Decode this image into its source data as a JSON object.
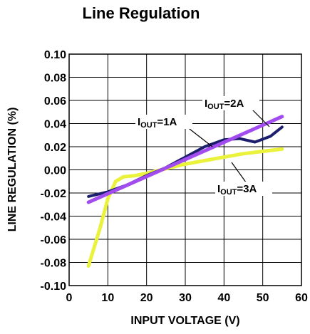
{
  "chart_data": {
    "type": "line",
    "title": "Line Regulation",
    "xlabel": "INPUT VOLTAGE (V)",
    "ylabel": "LINE REGULATION (%)",
    "xlim": [
      0,
      60
    ],
    "ylim": [
      -0.1,
      0.1
    ],
    "xticks": [
      0,
      10,
      20,
      30,
      40,
      50,
      60
    ],
    "xtick_labels": [
      "0",
      "10",
      "20",
      "30",
      "40",
      "50",
      "60"
    ],
    "yticks": [
      0.1,
      0.08,
      0.06,
      0.04,
      0.02,
      0.0,
      -0.02,
      -0.04,
      -0.06,
      -0.08,
      -0.1
    ],
    "ytick_labels": [
      "0.10",
      "0.08",
      "0.06",
      "0.04",
      "0.02",
      "0.00",
      "-0.02",
      "-0.04",
      "-0.06",
      "-0.08",
      "-0.10"
    ],
    "grid": true,
    "series": [
      {
        "name_parts": [
          "I",
          "OUT",
          "=1A"
        ],
        "color": "#1b1f6e",
        "points": [
          [
            5,
            -0.023
          ],
          [
            10,
            -0.019
          ],
          [
            15,
            -0.013
          ],
          [
            20,
            -0.005
          ],
          [
            25,
            0.002
          ],
          [
            30,
            0.011
          ],
          [
            35,
            0.02
          ],
          [
            40,
            0.026
          ],
          [
            44,
            0.027
          ],
          [
            48,
            0.024
          ],
          [
            52,
            0.029
          ],
          [
            55,
            0.037
          ]
        ]
      },
      {
        "name_parts": [
          "I",
          "OUT",
          "=2A"
        ],
        "color": "#a24cf0",
        "points": [
          [
            5,
            -0.028
          ],
          [
            55,
            0.046
          ]
        ]
      },
      {
        "name_parts": [
          "I",
          "OUT",
          "=3A"
        ],
        "color": "#eaf23c",
        "points": [
          [
            5,
            -0.083
          ],
          [
            8,
            -0.05
          ],
          [
            10,
            -0.025
          ],
          [
            12,
            -0.01
          ],
          [
            14,
            -0.006
          ],
          [
            17,
            -0.005
          ],
          [
            20,
            -0.003
          ],
          [
            25,
            0.001
          ],
          [
            30,
            0.005
          ],
          [
            35,
            0.008
          ],
          [
            40,
            0.011
          ],
          [
            45,
            0.014
          ],
          [
            50,
            0.016
          ],
          [
            55,
            0.018
          ]
        ]
      }
    ]
  }
}
